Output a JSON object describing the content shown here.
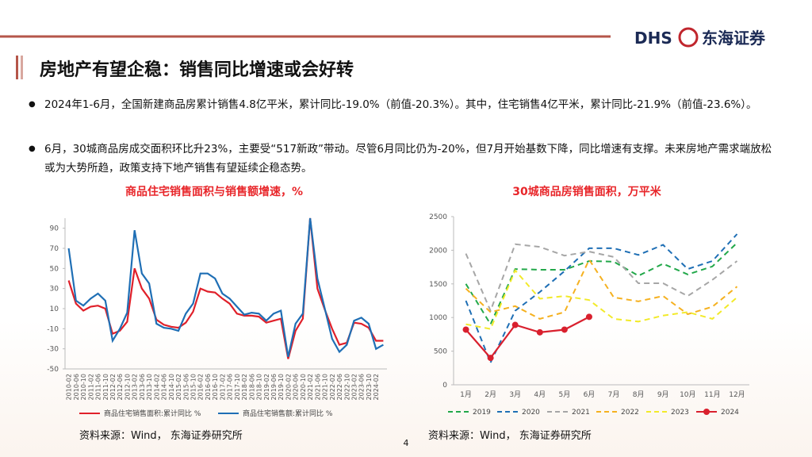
{
  "header": {
    "title": "房地产有望企稳：销售同比增速或会好转",
    "logo_en": "DHS",
    "logo_cn": "东海证券"
  },
  "bullets": [
    "2024年1-6月，全国新建商品房累计销售4.8亿平米，累计同比-19.0%（前值-20.3%）。其中，住宅销售4亿平米，累计同比-21.9%（前值-23.6%）。",
    "6月，30城商品房成交面积环比升23%，主要受“517新政”带动。尽管6月同比仍为-20%，但7月开始基数下降，同比增速有支撑。未来房地产需求端放松或为大势所趋，政策支持下地产销售有望延续企稳态势。"
  ],
  "chart_data": [
    {
      "type": "line",
      "title": "商品住宅销售面积与销售额增速，%",
      "categories": [
        "2010-02",
        "2010-06",
        "2010-10",
        "2011-02",
        "2011-06",
        "2011-10",
        "2012-02",
        "2012-06",
        "2012-10",
        "2013-02",
        "2013-06",
        "2013-10",
        "2014-02",
        "2014-06",
        "2014-10",
        "2015-02",
        "2015-06",
        "2015-10",
        "2016-02",
        "2016-06",
        "2016-10",
        "2017-02",
        "2017-06",
        "2017-10",
        "2018-02",
        "2018-06",
        "2018-10",
        "2019-02",
        "2019-06",
        "2019-10",
        "2020-02",
        "2020-06",
        "2020-10",
        "2021-02",
        "2021-06",
        "2021-10",
        "2022-02",
        "2022-06",
        "2022-10",
        "2023-02",
        "2023-06",
        "2023-10",
        "2024-02",
        null
      ],
      "series": [
        {
          "name": "商品住宅销售面积:累计同比 %",
          "color": "#e0202a",
          "dashed": false,
          "values": [
            38,
            15,
            8,
            12,
            13,
            10,
            -15,
            -12,
            -3,
            50,
            30,
            20,
            -1,
            -6,
            -8,
            -9,
            -4,
            7,
            30,
            27,
            26,
            20,
            15,
            5,
            3,
            3,
            2,
            -4,
            -2,
            0,
            -40,
            -12,
            0,
            100,
            30,
            9,
            -10,
            -26,
            -24,
            -4,
            -5,
            -9,
            -22,
            -22
          ]
        },
        {
          "name": "商品住宅销售额:累计同比 %",
          "color": "#1f6fb5",
          "dashed": false,
          "values": [
            70,
            18,
            13,
            20,
            25,
            18,
            -22,
            -10,
            6,
            88,
            45,
            35,
            -5,
            -9,
            -10,
            -12,
            5,
            15,
            45,
            45,
            40,
            25,
            20,
            12,
            4,
            6,
            5,
            -2,
            5,
            8,
            -38,
            -5,
            5,
            100,
            40,
            10,
            -20,
            -33,
            -26,
            -2,
            1,
            -5,
            -30,
            -26
          ]
        }
      ],
      "ylim": [
        -50,
        100
      ],
      "yticks": [
        -50,
        -30,
        -10,
        10,
        30,
        50,
        70,
        90
      ],
      "grid": false,
      "legend": "bottom"
    },
    {
      "type": "line",
      "title": "30城商品房销售面积，万平米",
      "categories": [
        "1月",
        "2月",
        "3月",
        "4月",
        "5月",
        "6月",
        "7月",
        "8月",
        "9月",
        "10月",
        "11月",
        "12月"
      ],
      "series": [
        {
          "name": "2019",
          "color": "#22a84a",
          "dashed": true,
          "markers": false,
          "values": [
            1500,
            900,
            1720,
            1710,
            1710,
            1840,
            1830,
            1620,
            1800,
            1640,
            1760,
            2110
          ]
        },
        {
          "name": "2020",
          "color": "#1f6fb5",
          "dashed": true,
          "markers": false,
          "values": [
            1250,
            330,
            1100,
            1380,
            1690,
            2030,
            2030,
            1930,
            2080,
            1720,
            1840,
            2240
          ]
        },
        {
          "name": "2021",
          "color": "#a6a6a6",
          "dashed": true,
          "markers": false,
          "values": [
            1950,
            1100,
            2090,
            2050,
            1920,
            1980,
            1900,
            1510,
            1510,
            1320,
            1560,
            1840
          ]
        },
        {
          "name": "2022",
          "color": "#f5b120",
          "dashed": true,
          "markers": false,
          "values": [
            1430,
            1080,
            1170,
            980,
            1080,
            1860,
            1300,
            1240,
            1320,
            1050,
            1160,
            1460
          ]
        },
        {
          "name": "2023",
          "color": "#f2ea2a",
          "dashed": true,
          "markers": false,
          "values": [
            900,
            830,
            1700,
            1280,
            1320,
            1260,
            980,
            940,
            1030,
            1080,
            980,
            1300
          ]
        },
        {
          "name": "2024",
          "color": "#d9202e",
          "dashed": false,
          "markers": true,
          "values": [
            820,
            400,
            890,
            780,
            820,
            1010,
            null,
            null,
            null,
            null,
            null,
            null
          ]
        }
      ],
      "ylim": [
        0,
        2500
      ],
      "yticks": [
        0,
        500,
        1000,
        1500,
        2000,
        2500
      ],
      "grid": false,
      "legend": "bottom"
    }
  ],
  "sources": [
    "资料来源：Wind， 东海证券研究所",
    "资料来源：Wind， 东海证券研究所"
  ],
  "page_number": "4"
}
